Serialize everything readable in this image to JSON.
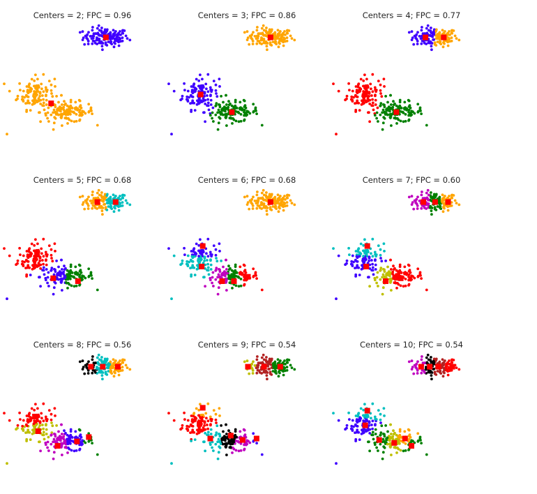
{
  "chart_data": {
    "type": "scatter",
    "title": "",
    "xlabel": "",
    "ylabel": "",
    "grid": false,
    "axes_visible": false,
    "xlim": [
      -2,
      12
    ],
    "ylim": [
      0,
      10
    ],
    "colors": {
      "blue": "#3f00ff",
      "orange": "#ffa500",
      "green": "#008000",
      "red": "#ff0000",
      "cyan": "#00bfbf",
      "magenta": "#bf00bf",
      "olive": "#bfbf00",
      "black": "#000000",
      "brown": "#b22222"
    },
    "center_marker_color": "#ff0000",
    "groups": [
      {
        "center": [
          7.2,
          8.4
        ],
        "spread": [
          1.05,
          0.32
        ],
        "n": 140
      },
      {
        "center": [
          0.7,
          4.6
        ],
        "spread": [
          0.85,
          0.55
        ],
        "n": 120
      },
      {
        "center": [
          3.6,
          3.3
        ],
        "spread": [
          1.25,
          0.35
        ],
        "n": 130
      }
    ],
    "outliers": [
      [
        -2.0,
        1.8
      ],
      [
        5.8,
        3.5
      ],
      [
        5.3,
        8.5
      ]
    ],
    "panels": [
      {
        "title": "Centers = 2; FPC = 0.96",
        "centers": [
          [
            7.2,
            8.4
          ],
          [
            2.1,
            3.9
          ]
        ],
        "colors": [
          "blue",
          "orange"
        ]
      },
      {
        "title": "Centers = 3; FPC = 0.86",
        "centers": [
          [
            7.2,
            8.4
          ],
          [
            0.7,
            4.5
          ],
          [
            3.6,
            3.3
          ]
        ],
        "colors": [
          "orange",
          "blue",
          "green"
        ]
      },
      {
        "title": "Centers = 4; FPC = 0.77",
        "centers": [
          [
            6.3,
            8.4
          ],
          [
            8.0,
            8.4
          ],
          [
            0.7,
            4.5
          ],
          [
            3.6,
            3.3
          ]
        ],
        "colors": [
          "blue",
          "orange",
          "red",
          "green"
        ]
      },
      {
        "title": "Centers = 5; FPC = 0.68",
        "centers": [
          [
            6.4,
            8.4
          ],
          [
            8.1,
            8.4
          ],
          [
            0.8,
            4.9
          ],
          [
            2.3,
            3.2
          ],
          [
            4.6,
            3.0
          ]
        ],
        "colors": [
          "orange",
          "cyan",
          "red",
          "blue",
          "green"
        ]
      },
      {
        "title": "Centers = 6; FPC = 0.68",
        "centers": [
          [
            7.2,
            8.4
          ],
          [
            0.9,
            5.4
          ],
          [
            0.8,
            4.0
          ],
          [
            2.7,
            3.0
          ],
          [
            3.8,
            3.0
          ],
          [
            5.1,
            3.3
          ]
        ],
        "colors": [
          "orange",
          "blue",
          "cyan",
          "magenta",
          "green",
          "red"
        ]
      },
      {
        "title": "Centers = 7; FPC = 0.60",
        "centers": [
          [
            6.1,
            8.4
          ],
          [
            7.2,
            8.4
          ],
          [
            8.4,
            8.4
          ],
          [
            0.9,
            5.4
          ],
          [
            0.8,
            4.0
          ],
          [
            2.6,
            3.0
          ],
          [
            4.0,
            3.2
          ]
        ],
        "colors": [
          "magenta",
          "green",
          "orange",
          "cyan",
          "blue",
          "olive",
          "red"
        ]
      },
      {
        "title": "Centers = 8; FPC = 0.56",
        "centers": [
          [
            5.8,
            8.4
          ],
          [
            6.9,
            8.4
          ],
          [
            8.3,
            8.4
          ],
          [
            0.6,
            5.0
          ],
          [
            0.9,
            4.0
          ],
          [
            2.7,
            3.0
          ],
          [
            4.5,
            3.3
          ],
          [
            5.6,
            3.6
          ]
        ],
        "colors": [
          "black",
          "cyan",
          "orange",
          "red",
          "olive",
          "magenta",
          "blue",
          "green"
        ]
      },
      {
        "title": "Centers = 9; FPC = 0.54",
        "centers": [
          [
            5.1,
            8.4
          ],
          [
            6.6,
            8.4
          ],
          [
            8.1,
            8.4
          ],
          [
            0.9,
            5.6
          ],
          [
            0.6,
            4.5
          ],
          [
            1.6,
            3.5
          ],
          [
            3.5,
            3.7
          ],
          [
            4.6,
            3.4
          ],
          [
            5.9,
            3.5
          ]
        ],
        "colors": [
          "olive",
          "brown",
          "green",
          "orange",
          "red",
          "cyan",
          "black",
          "magenta",
          "blue"
        ]
      },
      {
        "title": "Centers = 10; FPC = 0.54",
        "centers": [
          [
            5.9,
            8.4
          ],
          [
            6.7,
            8.4
          ],
          [
            7.5,
            8.4
          ],
          [
            8.8,
            8.4
          ],
          [
            0.9,
            5.4
          ],
          [
            0.7,
            4.4
          ],
          [
            2.0,
            3.4
          ],
          [
            3.4,
            3.2
          ],
          [
            4.4,
            3.5
          ],
          [
            5.0,
            3.0
          ]
        ],
        "colors": [
          "magenta",
          "black",
          "brown",
          "red",
          "cyan",
          "blue",
          "green",
          "olive",
          "orange",
          "green"
        ]
      }
    ]
  }
}
